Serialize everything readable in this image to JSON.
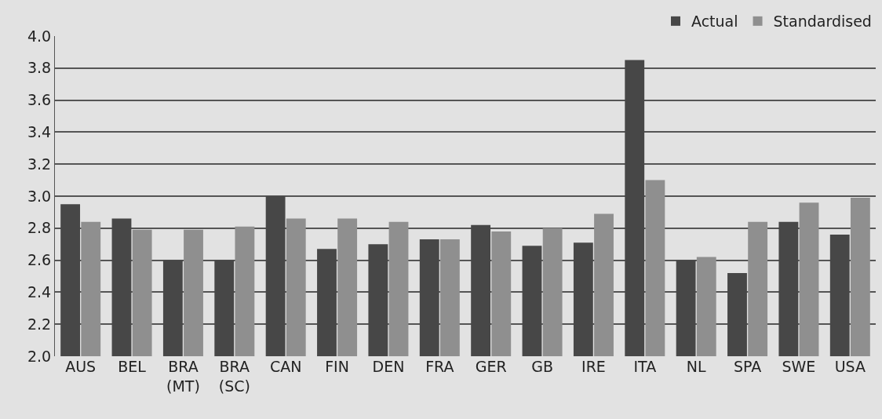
{
  "chart_data": {
    "type": "bar",
    "categories": [
      "AUS",
      "BEL",
      "BRA\n(MT)",
      "BRA\n(SC)",
      "CAN",
      "FIN",
      "DEN",
      "FRA",
      "GER",
      "GB",
      "IRE",
      "ITA",
      "NL",
      "SPA",
      "SWE",
      "USA"
    ],
    "series": [
      {
        "name": "Actual",
        "color": "#474747",
        "values": [
          2.95,
          2.86,
          2.6,
          2.6,
          3.0,
          2.67,
          2.7,
          2.73,
          2.82,
          2.69,
          2.71,
          3.85,
          2.6,
          2.52,
          2.84,
          2.76
        ]
      },
      {
        "name": "Standardised",
        "color": "#8f8f8f",
        "values": [
          2.84,
          2.79,
          2.79,
          2.81,
          2.86,
          2.86,
          2.84,
          2.73,
          2.78,
          2.8,
          2.89,
          3.1,
          2.62,
          2.84,
          2.96,
          2.99
        ]
      }
    ],
    "ylim": [
      2.0,
      4.0
    ],
    "yticks": [
      {
        "value": 2.0,
        "label": "2.0"
      },
      {
        "value": 2.2,
        "label": "2.2"
      },
      {
        "value": 2.4,
        "label": "2.4"
      },
      {
        "value": 2.6,
        "label": "2.6"
      },
      {
        "value": 2.8,
        "label": "2.8"
      },
      {
        "value": 3.0,
        "label": "3.0"
      },
      {
        "value": 3.2,
        "label": "3.2"
      },
      {
        "value": 3.4,
        "label": "3.4"
      },
      {
        "value": 3.6,
        "label": "3.6"
      },
      {
        "value": 3.8,
        "label": "3.8"
      },
      {
        "value": 4.0,
        "label": "4.0"
      }
    ],
    "grid": "y",
    "legend": "top right"
  }
}
